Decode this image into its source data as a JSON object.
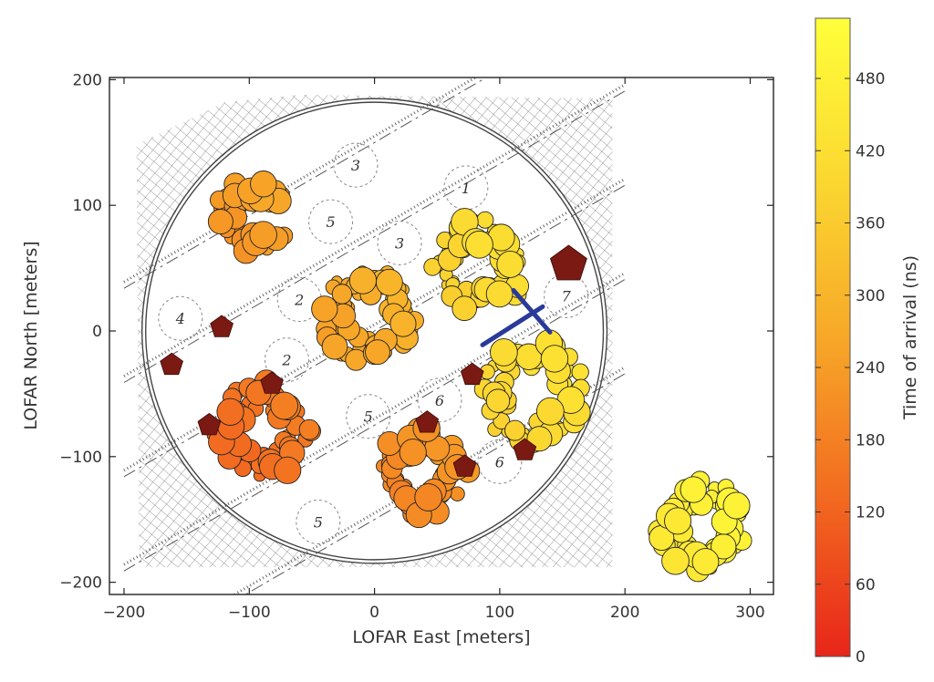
{
  "chart_data": {
    "type": "scatter",
    "xlabel": "LOFAR East [meters]",
    "ylabel": "LOFAR North [meters]",
    "xlim": [
      -210,
      320
    ],
    "ylim": [
      -210,
      202
    ],
    "xticks": [
      -200,
      -100,
      0,
      100,
      200,
      300
    ],
    "xtick_labels": [
      "−200",
      "−100",
      "0",
      "100",
      "200",
      "300"
    ],
    "yticks": [
      -200,
      -100,
      0,
      100,
      200
    ],
    "ytick_labels": [
      "−200",
      "−100",
      "0",
      "100",
      "200"
    ],
    "colorbar": {
      "label": "Time of arrival (ns)",
      "range": [
        0,
        530
      ],
      "ticks": [
        0,
        60,
        120,
        180,
        240,
        300,
        360,
        420,
        480
      ],
      "tick_labels": [
        "0",
        "60",
        "120",
        "180",
        "240",
        "300",
        "360",
        "420",
        "480"
      ],
      "colors": [
        "#e8251a",
        "#f26a20",
        "#f7a828",
        "#fbd830",
        "#ffff3a"
      ]
    },
    "series": [
      {
        "marker": "circle",
        "stations": [
          {
            "center": [
              -97,
              91
            ],
            "shape": "C",
            "radius": 31,
            "time": 240
          },
          {
            "center": [
              -5,
              12
            ],
            "shape": "ring",
            "radius": 38,
            "time": 275
          },
          {
            "center": [
              83,
              52
            ],
            "shape": "ring",
            "radius": 37,
            "time": 400
          },
          {
            "center": [
              126,
              -48
            ],
            "shape": "ring",
            "radius": 43,
            "time": 405
          },
          {
            "center": [
              -90,
              -80
            ],
            "shape": "ring",
            "radius": 40,
            "time": 150
          },
          {
            "center": [
              38,
              -112
            ],
            "shape": "ring",
            "radius": 37,
            "time": 210
          },
          {
            "center": [
              262,
              -155
            ],
            "shape": "ring",
            "radius": 36,
            "time": 470
          }
        ]
      },
      {
        "marker": "pentagon",
        "color": "#7a1a12",
        "points": [
          [
            155,
            53
          ],
          [
            -122,
            3
          ],
          [
            -162,
            -27
          ],
          [
            -82,
            -42
          ],
          [
            -132,
            -75
          ],
          [
            42,
            -73
          ],
          [
            72,
            -108
          ],
          [
            120,
            -95
          ],
          [
            78,
            -35
          ]
        ]
      }
    ],
    "shower_core": {
      "marker": "x",
      "x": 127,
      "y": 15,
      "color": "#2a3a9a"
    },
    "background_map": {
      "type": "LOFAR superterp site map",
      "circle_center": [
        0,
        0
      ],
      "circle_radius": 182,
      "map_labels": [
        {
          "text": "3",
          "x": -15,
          "y": 132
        },
        {
          "text": "1",
          "x": 73,
          "y": 114
        },
        {
          "text": "3",
          "x": 20,
          "y": 70
        },
        {
          "text": "2",
          "x": -60,
          "y": 25
        },
        {
          "text": "4",
          "x": -155,
          "y": 10
        },
        {
          "text": "2",
          "x": -70,
          "y": -23
        },
        {
          "text": "5",
          "x": -5,
          "y": -68
        },
        {
          "text": "6",
          "x": 52,
          "y": -55
        },
        {
          "text": "6",
          "x": 100,
          "y": -104
        },
        {
          "text": "5",
          "x": -45,
          "y": -152
        },
        {
          "text": "7",
          "x": 153,
          "y": 28
        },
        {
          "text": "5",
          "x": -35,
          "y": 87
        }
      ]
    }
  }
}
